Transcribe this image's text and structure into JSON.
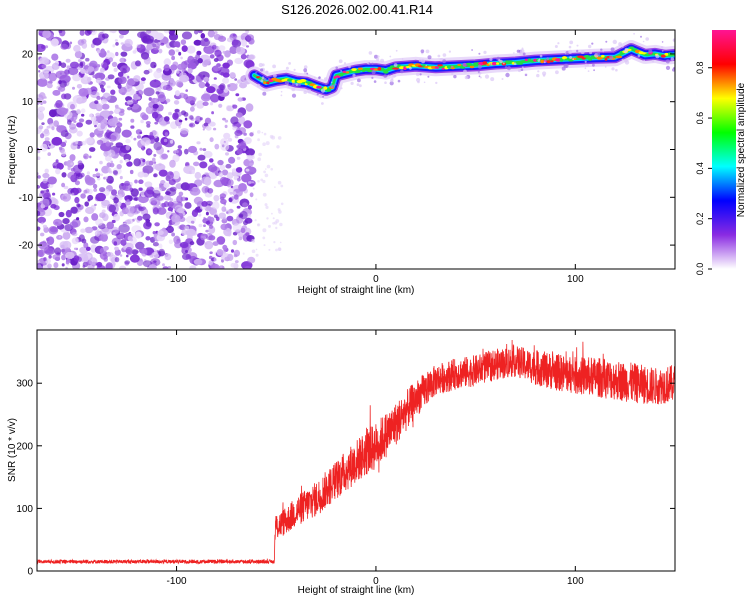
{
  "figure": {
    "title": "S126.2026.002.00.41.R14"
  },
  "chart_data": [
    {
      "type": "heatmap",
      "name": "spectrogram",
      "xlabel": "Height of straight line (km)",
      "ylabel": "Frequency (Hz)",
      "xlim": [
        -170,
        150
      ],
      "ylim": [
        -25,
        25
      ],
      "x_ticks": [
        -100,
        0,
        100
      ],
      "y_ticks": [
        20,
        10,
        0,
        -10,
        -20
      ],
      "noise_region_x": [
        -170,
        -62
      ],
      "ridge_trace": {
        "x": [
          -61,
          -55,
          -50,
          -45,
          -40,
          -35,
          -30,
          -25,
          -22,
          -20,
          -15,
          -10,
          -5,
          0,
          5,
          10,
          20,
          30,
          40,
          50,
          60,
          70,
          80,
          90,
          100,
          110,
          120,
          128,
          135,
          140,
          145,
          150
        ],
        "frequency": [
          15.5,
          14.0,
          14.5,
          14.8,
          14.2,
          14.0,
          13.2,
          12.5,
          13.0,
          15.5,
          16.0,
          16.5,
          16.8,
          16.8,
          16.5,
          17.2,
          17.5,
          17.2,
          17.4,
          17.6,
          18.0,
          18.2,
          18.6,
          18.8,
          19.0,
          19.2,
          19.3,
          21.0,
          19.8,
          20.0,
          19.6,
          19.8
        ]
      },
      "colorbar": {
        "label": "Normalized spectral amplitude",
        "range": [
          0.0,
          0.95
        ],
        "ticks": [
          0.0,
          0.2,
          0.4,
          0.6,
          0.8
        ],
        "tick_labels": [
          "0.0",
          "0.2",
          "0.4",
          "0.6",
          "0.8"
        ],
        "colors": [
          "#ffffff",
          "#8a2be2",
          "#0000ff",
          "#00ffff",
          "#00ff00",
          "#ffff00",
          "#ff0000",
          "#ff1493"
        ]
      }
    },
    {
      "type": "line",
      "name": "snr",
      "xlabel": "Height of straight line (km)",
      "ylabel": "SNR (10 * v/v)",
      "xlim": [
        -170,
        150
      ],
      "ylim": [
        0,
        385
      ],
      "x_ticks": [
        -100,
        0,
        100
      ],
      "y_ticks": [
        0,
        100,
        200,
        300
      ],
      "color": "#ee2222",
      "series": [
        {
          "name": "SNR",
          "x": [
            -170,
            -120,
            -70,
            -51,
            -50.5,
            -45,
            -40,
            -30,
            -20,
            -10,
            0,
            10,
            20,
            30,
            40,
            50,
            60,
            70,
            80,
            90,
            100,
            110,
            120,
            130,
            140,
            150
          ],
          "values": [
            15,
            15,
            15,
            15,
            70,
            80,
            95,
            115,
            145,
            175,
            200,
            235,
            275,
            305,
            315,
            320,
            330,
            335,
            325,
            318,
            312,
            310,
            305,
            300,
            295,
            300
          ],
          "noise_amplitude": [
            3,
            3,
            3,
            3,
            22,
            22,
            25,
            28,
            32,
            35,
            38,
            35,
            30,
            25,
            25,
            25,
            25,
            25,
            28,
            30,
            30,
            32,
            32,
            32,
            30,
            30
          ]
        }
      ]
    }
  ]
}
